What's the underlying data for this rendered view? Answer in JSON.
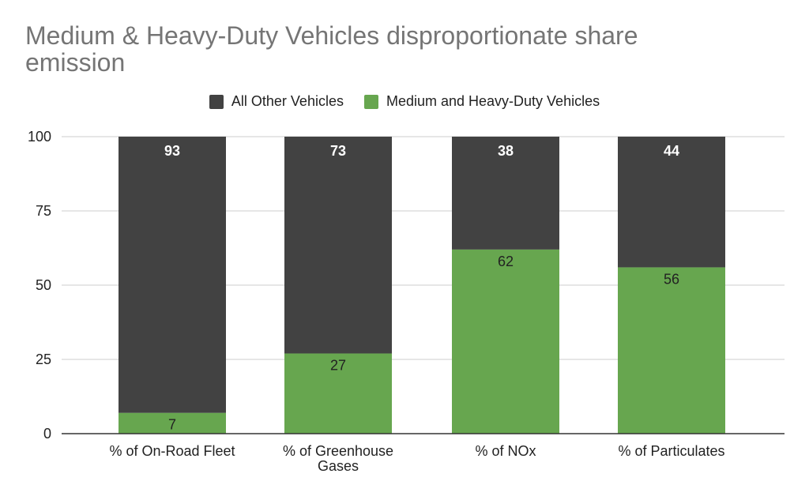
{
  "title": "Medium & Heavy-Duty Vehicles disproportionate share emission",
  "colors": {
    "all_other": "#424242",
    "medium_heavy": "#67a64f",
    "grid": "#cccccc",
    "axis": "#333333"
  },
  "chart_data": {
    "type": "bar",
    "stacked": true,
    "title": "Medium & Heavy-Duty Vehicles disproportionate share emission",
    "categories": [
      "% of On-Road Fleet",
      "% of Greenhouse Gases",
      "% of NOx",
      "% of Particulates"
    ],
    "series": [
      {
        "name": "Medium and Heavy-Duty Vehicles",
        "values": [
          7,
          27,
          62,
          56
        ]
      },
      {
        "name": "All Other Vehicles",
        "values": [
          93,
          73,
          38,
          44
        ]
      }
    ],
    "legend": [
      "All Other Vehicles",
      "Medium and Heavy-Duty Vehicles"
    ],
    "legend_position": "top",
    "ylim": [
      0,
      100
    ],
    "yticks": [
      0,
      25,
      50,
      75,
      100
    ],
    "xlabel": "",
    "ylabel": "",
    "grid": true
  }
}
